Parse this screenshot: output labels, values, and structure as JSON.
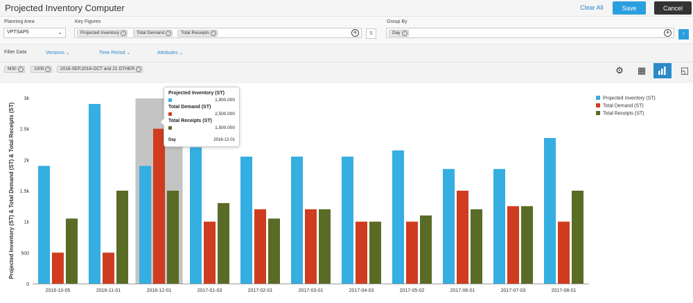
{
  "header": {
    "title": "Projected Inventory Computer",
    "clear_all": "Clear All",
    "save": "Save",
    "cancel": "Cancel"
  },
  "filters": {
    "planning_area_label": "Planning Area",
    "planning_area_value": "VPTSAP5",
    "key_figures_label": "Key Figures",
    "key_figures": [
      "Projected Inventory",
      "Total Demand",
      "Total Receipts"
    ],
    "group_by_label": "Group By",
    "group_by": [
      "Day"
    ]
  },
  "filter_bar": {
    "title": "Filter Data",
    "versions": "Versions",
    "time_period": "Time Period",
    "attributes": "Attributes"
  },
  "active_filters": [
    "M30",
    "1000",
    "2016-SEP,2016-OCT and 21 OTHER"
  ],
  "tooltip": {
    "items": [
      {
        "name": "Projected Inventory (ST)",
        "value": "1,900.000"
      },
      {
        "name": "Total Demand (ST)",
        "value": "2,500.000"
      },
      {
        "name": "Total Receipts (ST)",
        "value": "1,500.000"
      }
    ],
    "day_label": "Day",
    "day_value": "2016-12-01"
  },
  "colors": {
    "projected": "#35aee2",
    "demand": "#cf3c1f",
    "receipts": "#5a6b26",
    "accent": "#2b9fde"
  },
  "chart_data": {
    "type": "bar",
    "ylabel": "Projected Inventory (ST) & Total Demand (ST) & Total Receipts (ST)",
    "ylim": [
      0,
      3000
    ],
    "yticks": [
      "0",
      "500",
      "1k",
      "1.5k",
      "2k",
      "2.5k",
      "3k"
    ],
    "categories": [
      "2016-10-05",
      "2016-11-01",
      "2016-12-01",
      "2017-01-03",
      "2017-02-01",
      "2017-03-01",
      "2017-04-03",
      "2017-05-02",
      "2017-06-01",
      "2017-07-03",
      "2017-08-01"
    ],
    "series": [
      {
        "name": "Projected Inventory (ST)",
        "values": [
          1900,
          2900,
          1900,
          2200,
          2050,
          2050,
          2050,
          2150,
          1850,
          1850,
          2350
        ]
      },
      {
        "name": "Total Demand (ST)",
        "values": [
          500,
          500,
          2500,
          1000,
          1200,
          1200,
          1000,
          1000,
          1500,
          1250,
          1000
        ]
      },
      {
        "name": "Total Receipts (ST)",
        "values": [
          1050,
          1500,
          1500,
          1300,
          1050,
          1200,
          1000,
          1100,
          1200,
          1250,
          1500
        ]
      }
    ],
    "highlighted_category": "2016-12-01",
    "legend_position": "top-right",
    "grid": false
  }
}
